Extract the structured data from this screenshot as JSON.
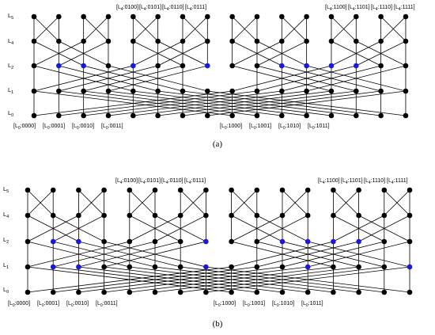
{
  "colors": {
    "node": "#000000",
    "highlight": "#1a1ad6",
    "edge": "#000000",
    "background": "#ffffff"
  },
  "level_names": [
    "L5",
    "L4",
    "L2",
    "L1",
    "L0"
  ],
  "panels": [
    {
      "caption": "(a)",
      "top_labels": [
        "[L4:0100]",
        "[L4:0101]",
        "[L4:0110]",
        "[L4:0111]",
        "[L4:1100]",
        "[L4:1101]",
        "[L4:1110]",
        "[L4:1111]"
      ],
      "bottom_labels": [
        "[L0:0000]",
        "[L0:0001]",
        "[L0:0010]",
        "[L0:0011]",
        "[L0:1000]",
        "[L0:1001]",
        "[L0:1010]",
        "[L0:1011]"
      ],
      "highlighted_nodes": {
        "L2": [
          1,
          2,
          4,
          7,
          10,
          11,
          12,
          13
        ],
        "L1": []
      }
    },
    {
      "caption": "(b)",
      "top_labels": [
        "[L4:0100]",
        "[L4:0101]",
        "[L4:0110]",
        "[L4:0111]",
        "[L4:1100]",
        "[L4:1101]",
        "[L4:1110]",
        "[L4:1111]"
      ],
      "bottom_labels": [
        "[L0:0000]",
        "[L0:0001]",
        "[L0:0010]",
        "[L0:0011]",
        "[L0:1000]",
        "[L0:1001]",
        "[L0:1010]",
        "[L0:1011]"
      ],
      "highlighted_nodes": {
        "L2": [
          1,
          2,
          7,
          10,
          11,
          12,
          13
        ],
        "L1": [
          1,
          2,
          7,
          11,
          15
        ]
      }
    }
  ]
}
